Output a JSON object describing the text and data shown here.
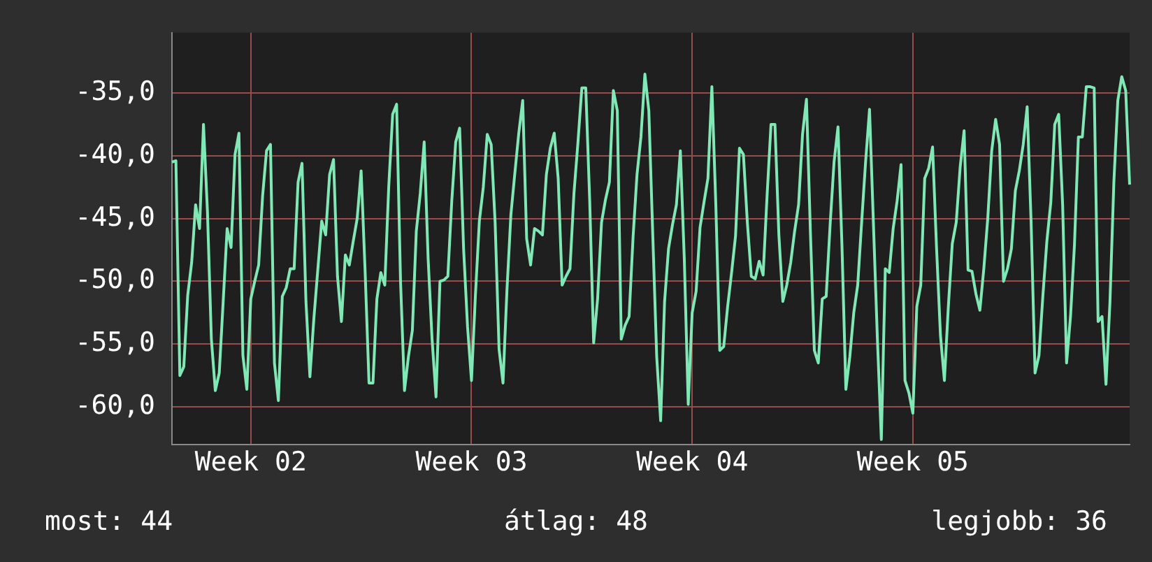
{
  "chart_data": {
    "type": "line",
    "legend": false,
    "grid": true,
    "annotations": [
      "most: 44",
      "átlag: 48",
      "legjobb: 36"
    ],
    "categories": [
      null,
      null,
      null,
      null,
      null,
      null,
      null,
      null,
      null,
      null,
      null,
      null,
      null,
      null,
      null,
      null,
      null,
      null,
      null,
      null,
      "Week 02",
      null,
      null,
      null,
      null,
      null,
      null,
      null,
      null,
      null,
      null,
      null,
      null,
      null,
      null,
      null,
      null,
      null,
      null,
      null,
      null,
      null,
      null,
      null,
      null,
      null,
      null,
      null,
      null,
      null,
      null,
      null,
      null,
      null,
      null,
      null,
      null,
      null,
      null,
      null,
      null,
      null,
      null,
      null,
      null,
      null,
      null,
      null,
      null,
      null,
      null,
      null,
      null,
      null,
      null,
      null,
      "Week 03",
      null,
      null,
      null,
      null,
      null,
      null,
      null,
      null,
      null,
      null,
      null,
      null,
      null,
      null,
      null,
      null,
      null,
      null,
      null,
      null,
      null,
      null,
      null,
      null,
      null,
      null,
      null,
      null,
      null,
      null,
      null,
      null,
      null,
      null,
      null,
      null,
      null,
      null,
      null,
      null,
      null,
      null,
      null,
      null,
      null,
      null,
      null,
      null,
      null,
      null,
      null,
      null,
      null,
      null,
      null,
      "Week 04",
      null,
      null,
      null,
      null,
      null,
      null,
      null,
      null,
      null,
      null,
      null,
      null,
      null,
      null,
      null,
      null,
      null,
      null,
      null,
      null,
      null,
      null,
      null,
      null,
      null,
      null,
      null,
      null,
      null,
      null,
      null,
      null,
      null,
      null,
      null,
      null,
      null,
      null,
      null,
      null,
      null,
      null,
      null,
      null,
      null,
      null,
      null,
      null,
      null,
      null,
      null,
      null,
      null,
      null,
      null,
      "Week 05",
      null,
      null,
      null,
      null,
      null,
      null,
      null,
      null,
      null,
      null,
      null,
      null,
      null,
      null,
      null,
      null,
      null,
      null,
      null,
      null,
      null,
      null,
      null,
      null,
      null,
      null,
      null,
      null,
      null,
      null,
      null,
      null,
      null,
      null,
      null,
      null,
      null,
      null,
      null,
      null,
      null,
      null,
      null,
      null,
      null,
      null,
      null,
      null,
      null,
      null,
      null,
      null,
      null,
      null,
      null
    ],
    "ylim": [
      -63,
      -30.2
    ],
    "yticks": [
      {
        "value": -60,
        "label": "-60,0"
      },
      {
        "value": -55,
        "label": "-55,0"
      },
      {
        "value": -50,
        "label": "-50,0"
      },
      {
        "value": -45,
        "label": "-45,0"
      },
      {
        "value": -40,
        "label": "-40,0"
      },
      {
        "value": -35,
        "label": "-35,0"
      }
    ],
    "series": [
      {
        "color": "#7fe8b5",
        "values": [
          -40.5,
          -40.4,
          -57.5,
          -56.8,
          -51.1,
          -48.5,
          -43.9,
          -45.8,
          -37.5,
          -44.4,
          -54.6,
          -58.7,
          -57.3,
          -51.6,
          -45.8,
          -47.3,
          -39.9,
          -38.2,
          -55.9,
          -58.6,
          -51.4,
          -50.0,
          -48.7,
          -43.2,
          -39.6,
          -39.1,
          -56.5,
          -59.5,
          -51.2,
          -50.5,
          -49.0,
          -49.0,
          -42.1,
          -40.6,
          -51.6,
          -57.6,
          -53.0,
          -49.1,
          -45.2,
          -46.3,
          -41.5,
          -40.3,
          -49.6,
          -53.2,
          -47.9,
          -48.7,
          -46.8,
          -45.0,
          -41.2,
          -49.1,
          -58.1,
          -58.1,
          -51.4,
          -49.3,
          -50.3,
          -42.5,
          -36.7,
          -35.9,
          -50.0,
          -58.7,
          -56.0,
          -53.9,
          -46.0,
          -43.0,
          -38.9,
          -48.2,
          -54.6,
          -59.2,
          -50.0,
          -49.9,
          -49.6,
          -43.6,
          -38.9,
          -37.8,
          -47.4,
          -53.6,
          -57.9,
          -51.1,
          -45.2,
          -42.5,
          -38.3,
          -39.1,
          -45.3,
          -55.4,
          -58.1,
          -50.7,
          -44.7,
          -41.4,
          -38.2,
          -35.6,
          -46.6,
          -48.7,
          -45.8,
          -46.0,
          -46.3,
          -41.5,
          -39.4,
          -38.2,
          -41.8,
          -50.3,
          -49.6,
          -49.0,
          -43.0,
          -39.0,
          -34.6,
          -34.6,
          -43.6,
          -54.9,
          -51.4,
          -45.3,
          -43.5,
          -42.1,
          -34.8,
          -36.4,
          -54.6,
          -53.5,
          -52.8,
          -46.5,
          -41.5,
          -38.5,
          -33.5,
          -36.4,
          -46.3,
          -56.0,
          -61.1,
          -51.6,
          -47.4,
          -45.5,
          -43.9,
          -39.6,
          -48.2,
          -59.8,
          -52.5,
          -50.8,
          -45.7,
          -43.7,
          -41.8,
          -34.5,
          -43.9,
          -55.5,
          -55.2,
          -52.0,
          -49.3,
          -46.4,
          -39.4,
          -39.9,
          -45.3,
          -49.6,
          -49.8,
          -48.4,
          -49.5,
          -43.2,
          -37.5,
          -37.5,
          -46.3,
          -51.6,
          -50.3,
          -48.5,
          -46.0,
          -43.9,
          -38.3,
          -35.5,
          -46.1,
          -55.5,
          -56.5,
          -51.4,
          -51.2,
          -45.5,
          -40.5,
          -37.7,
          -47.1,
          -58.6,
          -56.0,
          -52.5,
          -50.3,
          -45.3,
          -40.5,
          -36.3,
          -45.5,
          -54.6,
          -62.6,
          -49.0,
          -49.3,
          -45.8,
          -43.6,
          -40.7,
          -57.9,
          -58.9,
          -60.5,
          -52.0,
          -50.3,
          -41.8,
          -41.0,
          -39.3,
          -47.3,
          -54.3,
          -57.9,
          -52.0,
          -47.0,
          -45.3,
          -40.9,
          -38.0,
          -49.1,
          -49.2,
          -51.0,
          -52.3,
          -49.0,
          -45.0,
          -39.6,
          -37.1,
          -39.1,
          -50.0,
          -49.0,
          -47.4,
          -42.8,
          -41.2,
          -39.1,
          -36.1,
          -45.3,
          -57.3,
          -55.9,
          -51.1,
          -46.8,
          -43.7,
          -37.5,
          -36.7,
          -43.9,
          -56.5,
          -52.8,
          -47.1,
          -38.5,
          -38.5,
          -34.5,
          -34.5,
          -34.6,
          -53.2,
          -52.8,
          -58.2,
          -51.7,
          -42.1,
          -35.6,
          -33.7,
          -34.8,
          -42.3
        ]
      }
    ]
  }
}
